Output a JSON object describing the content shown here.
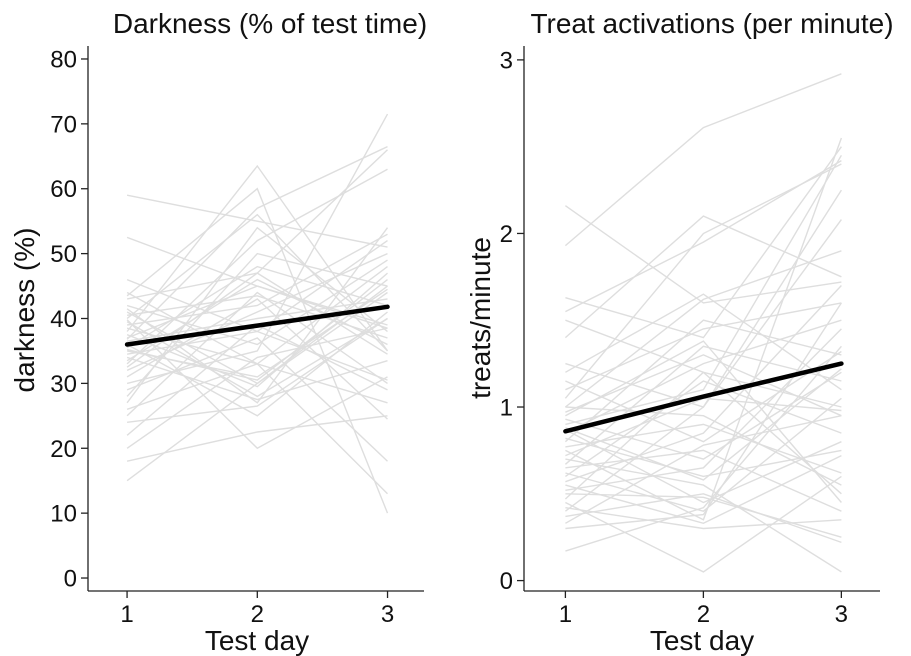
{
  "colors": {
    "individual": "#dedede",
    "mean": "#000000",
    "axis": "#222222"
  },
  "chart_data": [
    {
      "type": "line",
      "title": "Darkness (% of test time)",
      "xlabel": "Test day",
      "ylabel": "darkness (%)",
      "x": [
        1,
        2,
        3
      ],
      "xticks": [
        "1",
        "2",
        "3"
      ],
      "xlim": [
        0.7,
        3.28
      ],
      "ylim": [
        -2,
        82
      ],
      "yticks": [
        0,
        10,
        20,
        30,
        40,
        50,
        60,
        70,
        80
      ],
      "grid": false,
      "legend": "none",
      "mean": {
        "values": [
          36.0,
          38.9,
          41.8
        ]
      },
      "individuals": [
        [
          59.0,
          55.0,
          51.0
        ],
        [
          52.5,
          45.0,
          38.5
        ],
        [
          46.0,
          38.0,
          30.5
        ],
        [
          44.0,
          33.0,
          27.0
        ],
        [
          43.0,
          47.0,
          66.0
        ],
        [
          42.0,
          36.0,
          49.0
        ],
        [
          41.0,
          30.0,
          45.0
        ],
        [
          40.5,
          43.5,
          37.0
        ],
        [
          40.0,
          56.0,
          35.0
        ],
        [
          39.5,
          28.0,
          40.0
        ],
        [
          39.0,
          42.0,
          53.0
        ],
        [
          38.5,
          33.0,
          48.0
        ],
        [
          38.0,
          63.5,
          35.0
        ],
        [
          37.5,
          29.5,
          47.0
        ],
        [
          37.0,
          45.0,
          39.0
        ],
        [
          36.5,
          40.0,
          43.0
        ],
        [
          36.0,
          25.0,
          41.0
        ],
        [
          35.5,
          48.0,
          42.0
        ],
        [
          35.0,
          31.0,
          44.5
        ],
        [
          34.5,
          38.0,
          52.0
        ],
        [
          34.0,
          27.5,
          33.5
        ],
        [
          33.5,
          46.0,
          36.0
        ],
        [
          33.0,
          52.0,
          63.0
        ],
        [
          32.0,
          41.0,
          50.0
        ],
        [
          31.0,
          43.0,
          24.5
        ],
        [
          30.0,
          35.0,
          71.5
        ],
        [
          29.0,
          37.0,
          18.0
        ],
        [
          28.0,
          50.0,
          45.0
        ],
        [
          27.0,
          54.0,
          38.0
        ],
        [
          26.0,
          33.0,
          13.0
        ],
        [
          25.0,
          44.0,
          30.0
        ],
        [
          24.0,
          26.5,
          40.0
        ],
        [
          22.0,
          39.0,
          29.0
        ],
        [
          20.0,
          34.0,
          38.5
        ],
        [
          18.0,
          22.5,
          25.0
        ],
        [
          15.0,
          30.0,
          44.0
        ],
        [
          43.5,
          60.0,
          10.0
        ],
        [
          39.8,
          20.0,
          31.0
        ],
        [
          41.5,
          27.0,
          54.0
        ],
        [
          36.8,
          57.0,
          66.5
        ],
        [
          35.2,
          30.5,
          46.0
        ],
        [
          32.5,
          47.0,
          34.5
        ]
      ]
    },
    {
      "type": "line",
      "title": "Treat activations (per minute)",
      "xlabel": "Test day",
      "ylabel": "treats/minute",
      "x": [
        1,
        2,
        3
      ],
      "xticks": [
        "1",
        "2",
        "3"
      ],
      "xlim": [
        0.7,
        3.28
      ],
      "ylim": [
        -0.06,
        3.08
      ],
      "yticks": [
        0,
        1,
        2,
        3
      ],
      "grid": false,
      "legend": "none",
      "mean": {
        "values": [
          0.86,
          1.06,
          1.25
        ]
      },
      "individuals": [
        [
          2.16,
          1.6,
          1.72
        ],
        [
          1.93,
          2.61,
          2.92
        ],
        [
          1.63,
          1.4,
          2.5
        ],
        [
          1.55,
          1.95,
          2.42
        ],
        [
          1.5,
          1.2,
          1.0
        ],
        [
          1.4,
          2.1,
          1.75
        ],
        [
          1.25,
          1.0,
          2.25
        ],
        [
          1.2,
          1.65,
          1.1
        ],
        [
          1.15,
          0.8,
          1.32
        ],
        [
          1.1,
          1.45,
          1.6
        ],
        [
          1.05,
          2.0,
          2.4
        ],
        [
          1.0,
          0.95,
          0.55
        ],
        [
          0.97,
          1.3,
          0.95
        ],
        [
          0.93,
          0.7,
          1.2
        ],
        [
          0.9,
          1.1,
          2.45
        ],
        [
          0.87,
          0.45,
          0.8
        ],
        [
          0.85,
          1.25,
          1.5
        ],
        [
          0.82,
          0.6,
          0.75
        ],
        [
          0.8,
          1.5,
          1.3
        ],
        [
          0.77,
          0.9,
          0.62
        ],
        [
          0.75,
          0.35,
          2.55
        ],
        [
          0.72,
          1.05,
          0.98
        ],
        [
          0.7,
          0.55,
          0.05
        ],
        [
          0.67,
          1.35,
          1.15
        ],
        [
          0.65,
          0.75,
          0.4
        ],
        [
          0.62,
          0.4,
          1.05
        ],
        [
          0.6,
          1.15,
          0.85
        ],
        [
          0.57,
          0.85,
          1.7
        ],
        [
          0.55,
          0.33,
          0.72
        ],
        [
          0.52,
          0.65,
          1.45
        ],
        [
          0.5,
          0.48,
          0.25
        ],
        [
          0.47,
          1.2,
          0.5
        ],
        [
          0.45,
          0.05,
          0.6
        ],
        [
          0.42,
          0.3,
          0.35
        ],
        [
          0.4,
          1.0,
          2.08
        ],
        [
          0.37,
          0.5,
          0.22
        ],
        [
          0.33,
          0.78,
          0.95
        ],
        [
          0.3,
          0.38,
          1.6
        ],
        [
          0.17,
          0.42,
          1.35
        ],
        [
          1.0,
          1.62,
          1.9
        ],
        [
          0.88,
          0.58,
          1.22
        ],
        [
          0.95,
          1.38,
          0.45
        ]
      ]
    }
  ]
}
